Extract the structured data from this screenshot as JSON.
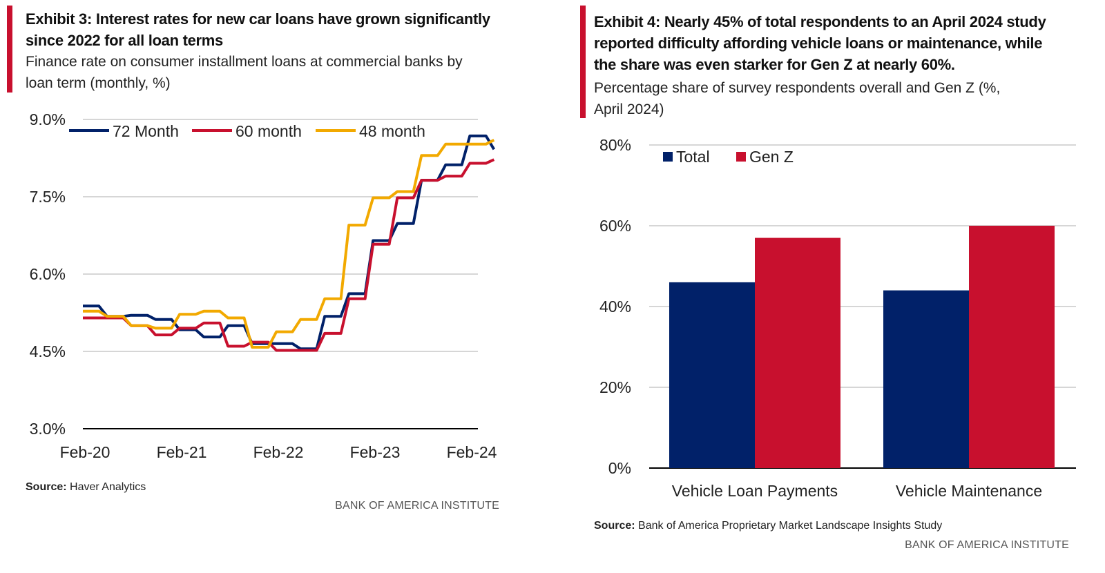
{
  "exhibit3": {
    "title_line1": "Exhibit 3: Interest rates for new car loans have grown significantly",
    "title_line2": "since 2022 for all loan terms",
    "subtitle_line1": "Finance rate on consumer installment loans at commercial banks by",
    "subtitle_line2": "loan term (monthly, %)",
    "source_label": "Source:",
    "source_text": " Haver Analytics",
    "brand": "BANK OF AMERICA INSTITUTE"
  },
  "exhibit4": {
    "title_line1": "Exhibit 4: Nearly 45% of total respondents to an April 2024 study",
    "title_line2": "reported difficulty affording vehicle loans or maintenance, while",
    "title_line3": "the share was even starker for Gen Z at nearly 60%.",
    "subtitle_line1": "Percentage share of survey respondents overall and Gen Z (%,",
    "subtitle_line2": "April 2024)",
    "source_label": "Source:",
    "source_text": " Bank of America Proprietary Market Landscape Insights Study",
    "brand": "BANK OF AMERICA INSTITUTE"
  },
  "chart_data": [
    {
      "type": "line",
      "title": "Exhibit 3: Interest rates for new car loans have grown significantly since 2022 for all loan terms",
      "xlabel": "",
      "ylabel": "",
      "x_start": "2020-02",
      "x_step": "month",
      "x_ticks": [
        "Feb-20",
        "Feb-21",
        "Feb-22",
        "Feb-23",
        "Feb-24"
      ],
      "y_ticks": [
        "9.0%",
        "7.5%",
        "6.0%",
        "4.5%",
        "3.0%"
      ],
      "ylim": [
        3.0,
        9.0
      ],
      "grid": true,
      "legend": "top",
      "series": [
        {
          "name": "72 Month",
          "color": "#012169",
          "values": [
            5.38,
            5.38,
            5.38,
            5.18,
            5.18,
            5.18,
            5.2,
            5.2,
            5.2,
            5.12,
            5.12,
            5.12,
            4.92,
            4.92,
            4.92,
            4.78,
            4.78,
            4.78,
            5.0,
            5.0,
            5.0,
            4.65,
            4.65,
            4.65,
            4.65,
            4.65,
            4.65,
            4.55,
            4.55,
            4.55,
            5.18,
            5.18,
            5.18,
            5.62,
            5.62,
            5.62,
            6.65,
            6.65,
            6.65,
            6.98,
            6.98,
            6.98,
            7.82,
            7.82,
            7.82,
            8.12,
            8.12,
            8.12,
            8.68,
            8.68,
            8.68,
            8.42
          ]
        },
        {
          "name": "60 month",
          "color": "#c8102e",
          "values": [
            5.15,
            5.15,
            5.15,
            5.15,
            5.15,
            5.15,
            5.0,
            5.0,
            5.0,
            4.82,
            4.82,
            4.82,
            4.95,
            4.95,
            4.95,
            5.05,
            5.05,
            5.05,
            4.6,
            4.6,
            4.6,
            4.68,
            4.68,
            4.68,
            4.52,
            4.52,
            4.52,
            4.52,
            4.52,
            4.52,
            4.85,
            4.85,
            4.85,
            5.52,
            5.52,
            5.52,
            6.58,
            6.58,
            6.58,
            7.48,
            7.48,
            7.48,
            7.82,
            7.82,
            7.82,
            7.9,
            7.9,
            7.9,
            8.15,
            8.15,
            8.15,
            8.22
          ]
        },
        {
          "name": "48 month",
          "color": "#f2a900",
          "values": [
            5.28,
            5.28,
            5.28,
            5.18,
            5.18,
            5.18,
            5.0,
            5.0,
            5.0,
            4.95,
            4.95,
            4.95,
            5.22,
            5.22,
            5.22,
            5.28,
            5.28,
            5.28,
            5.15,
            5.15,
            5.15,
            4.58,
            4.58,
            4.58,
            4.88,
            4.88,
            4.88,
            5.12,
            5.12,
            5.12,
            5.52,
            5.52,
            5.52,
            6.95,
            6.95,
            6.95,
            7.48,
            7.48,
            7.48,
            7.6,
            7.6,
            7.6,
            8.3,
            8.3,
            8.3,
            8.52,
            8.52,
            8.52,
            8.52,
            8.52,
            8.52,
            8.6
          ]
        }
      ]
    },
    {
      "type": "bar",
      "title": "Exhibit 4: Nearly 45% of total respondents to an April 2024 study reported difficulty affording vehicle loans or maintenance, while the share was even starker for Gen Z at nearly 60%.",
      "xlabel": "",
      "ylabel": "",
      "categories": [
        "Vehicle Loan Payments",
        "Vehicle Maintenance"
      ],
      "y_ticks": [
        "80%",
        "60%",
        "40%",
        "20%",
        "0%"
      ],
      "ylim": [
        0,
        80
      ],
      "grid": true,
      "legend": "top-left",
      "series": [
        {
          "name": "Total",
          "color": "#012169",
          "values": [
            46,
            44
          ]
        },
        {
          "name": "Gen Z",
          "color": "#c8102e",
          "values": [
            57,
            60
          ]
        }
      ]
    }
  ]
}
